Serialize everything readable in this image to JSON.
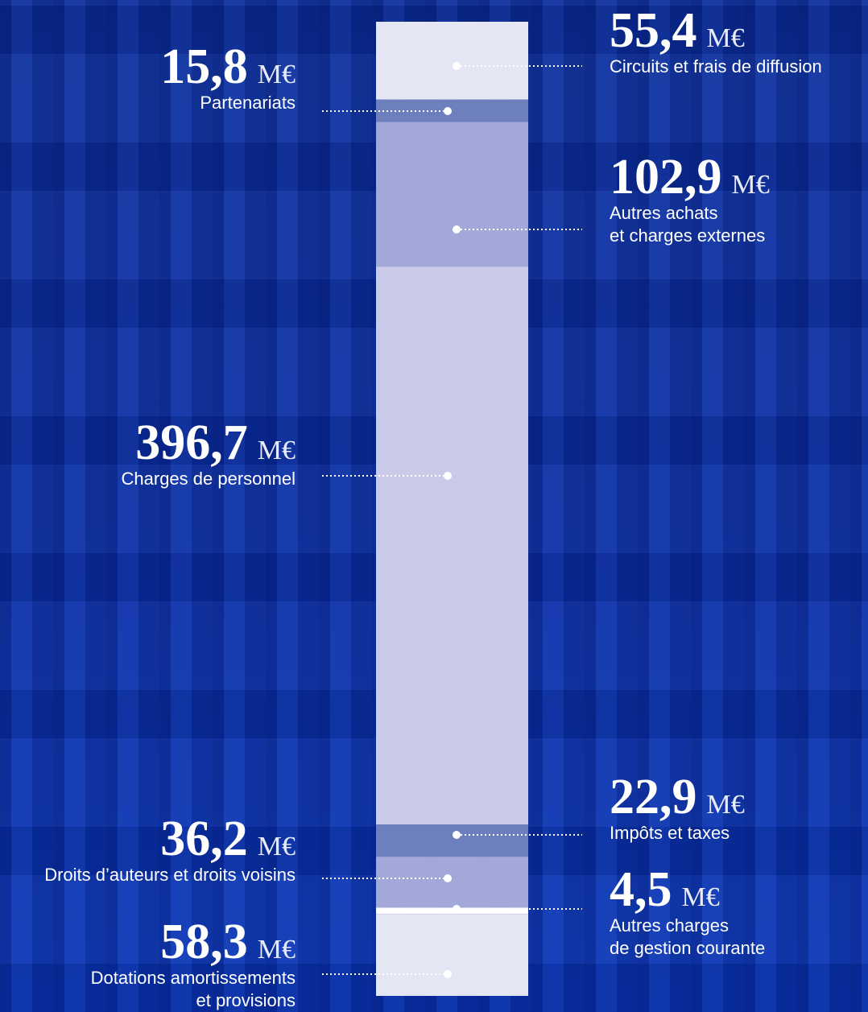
{
  "chart_data": {
    "type": "stacked-column",
    "unit": "M€",
    "series": [
      {
        "name": [
          "Circuits et frais de diffusion"
        ],
        "color": "#e4e6f4",
        "values": [
          55.4
        ],
        "value_labels": [
          "55,4"
        ]
      },
      {
        "name": [
          "Partenariats"
        ],
        "color": "#6e7fbd",
        "values": [
          15.8
        ],
        "value_labels": [
          "15,8"
        ]
      },
      {
        "name": [
          "Autres achats",
          "et charges externes"
        ],
        "color": "#a2a9d8",
        "values": [
          102.9
        ],
        "value_labels": [
          "102,9"
        ]
      },
      {
        "name": [
          "Charges de personnel"
        ],
        "color": "#cacbe8",
        "values": [
          396.7
        ],
        "value_labels": [
          "396,7"
        ]
      },
      {
        "name": [
          "Impôts et taxes"
        ],
        "color": "#6e7fbd",
        "values": [
          22.9
        ],
        "value_labels": [
          "22,9"
        ]
      },
      {
        "name": [
          "Droits d’auteurs et droits voisins"
        ],
        "color": "#a2a9d8",
        "values": [
          36.2
        ],
        "value_labels": [
          "36,2"
        ]
      },
      {
        "name": [
          "Autres charges",
          "de gestion courante"
        ],
        "color": "#ffffff",
        "values": [
          4.5
        ],
        "value_labels": [
          "4,5"
        ]
      },
      {
        "name": [
          "Dotations amortissements",
          "et provisions"
        ],
        "color": "#e4e6f4",
        "values": [
          58.3
        ],
        "value_labels": [
          "58,3"
        ]
      }
    ]
  }
}
